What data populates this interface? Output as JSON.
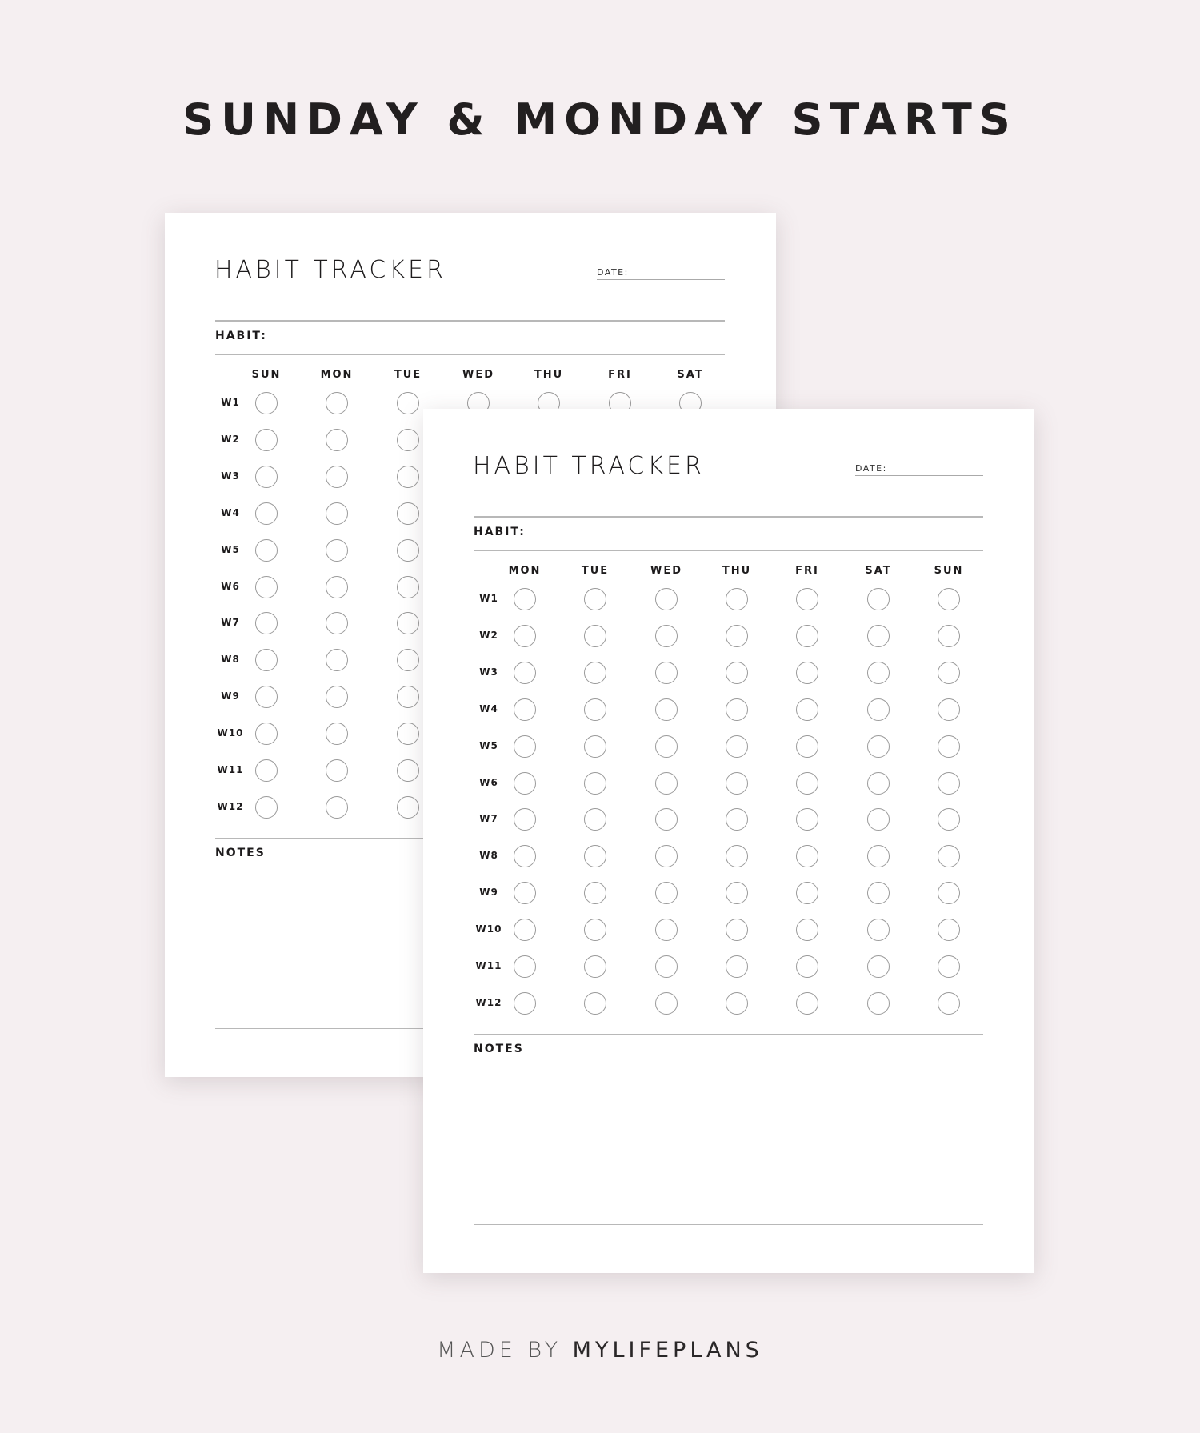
{
  "headline": "SUNDAY & MONDAY STARTS",
  "footer": {
    "prefix": "MADE BY",
    "brand": "MYLIFEPLANS"
  },
  "pages": [
    {
      "title": "HABIT TRACKER",
      "date_label": "DATE:",
      "habit_label": "HABIT:",
      "notes_label": "NOTES",
      "days": [
        "SUN",
        "MON",
        "TUE",
        "WED",
        "THU",
        "FRI",
        "SAT"
      ],
      "weeks": [
        "W1",
        "W2",
        "W3",
        "W4",
        "W5",
        "W6",
        "W7",
        "W8",
        "W9",
        "W10",
        "W11",
        "W12"
      ]
    },
    {
      "title": "HABIT TRACKER",
      "date_label": "DATE:",
      "habit_label": "HABIT:",
      "notes_label": "NOTES",
      "days": [
        "MON",
        "TUE",
        "WED",
        "THU",
        "FRI",
        "SAT",
        "SUN"
      ],
      "weeks": [
        "W1",
        "W2",
        "W3",
        "W4",
        "W5",
        "W6",
        "W7",
        "W8",
        "W9",
        "W10",
        "W11",
        "W12"
      ]
    }
  ],
  "colors": {
    "background": "#f5eff1",
    "page": "#ffffff",
    "text": "#1d1b1c",
    "circle": "#9a9a9a"
  }
}
